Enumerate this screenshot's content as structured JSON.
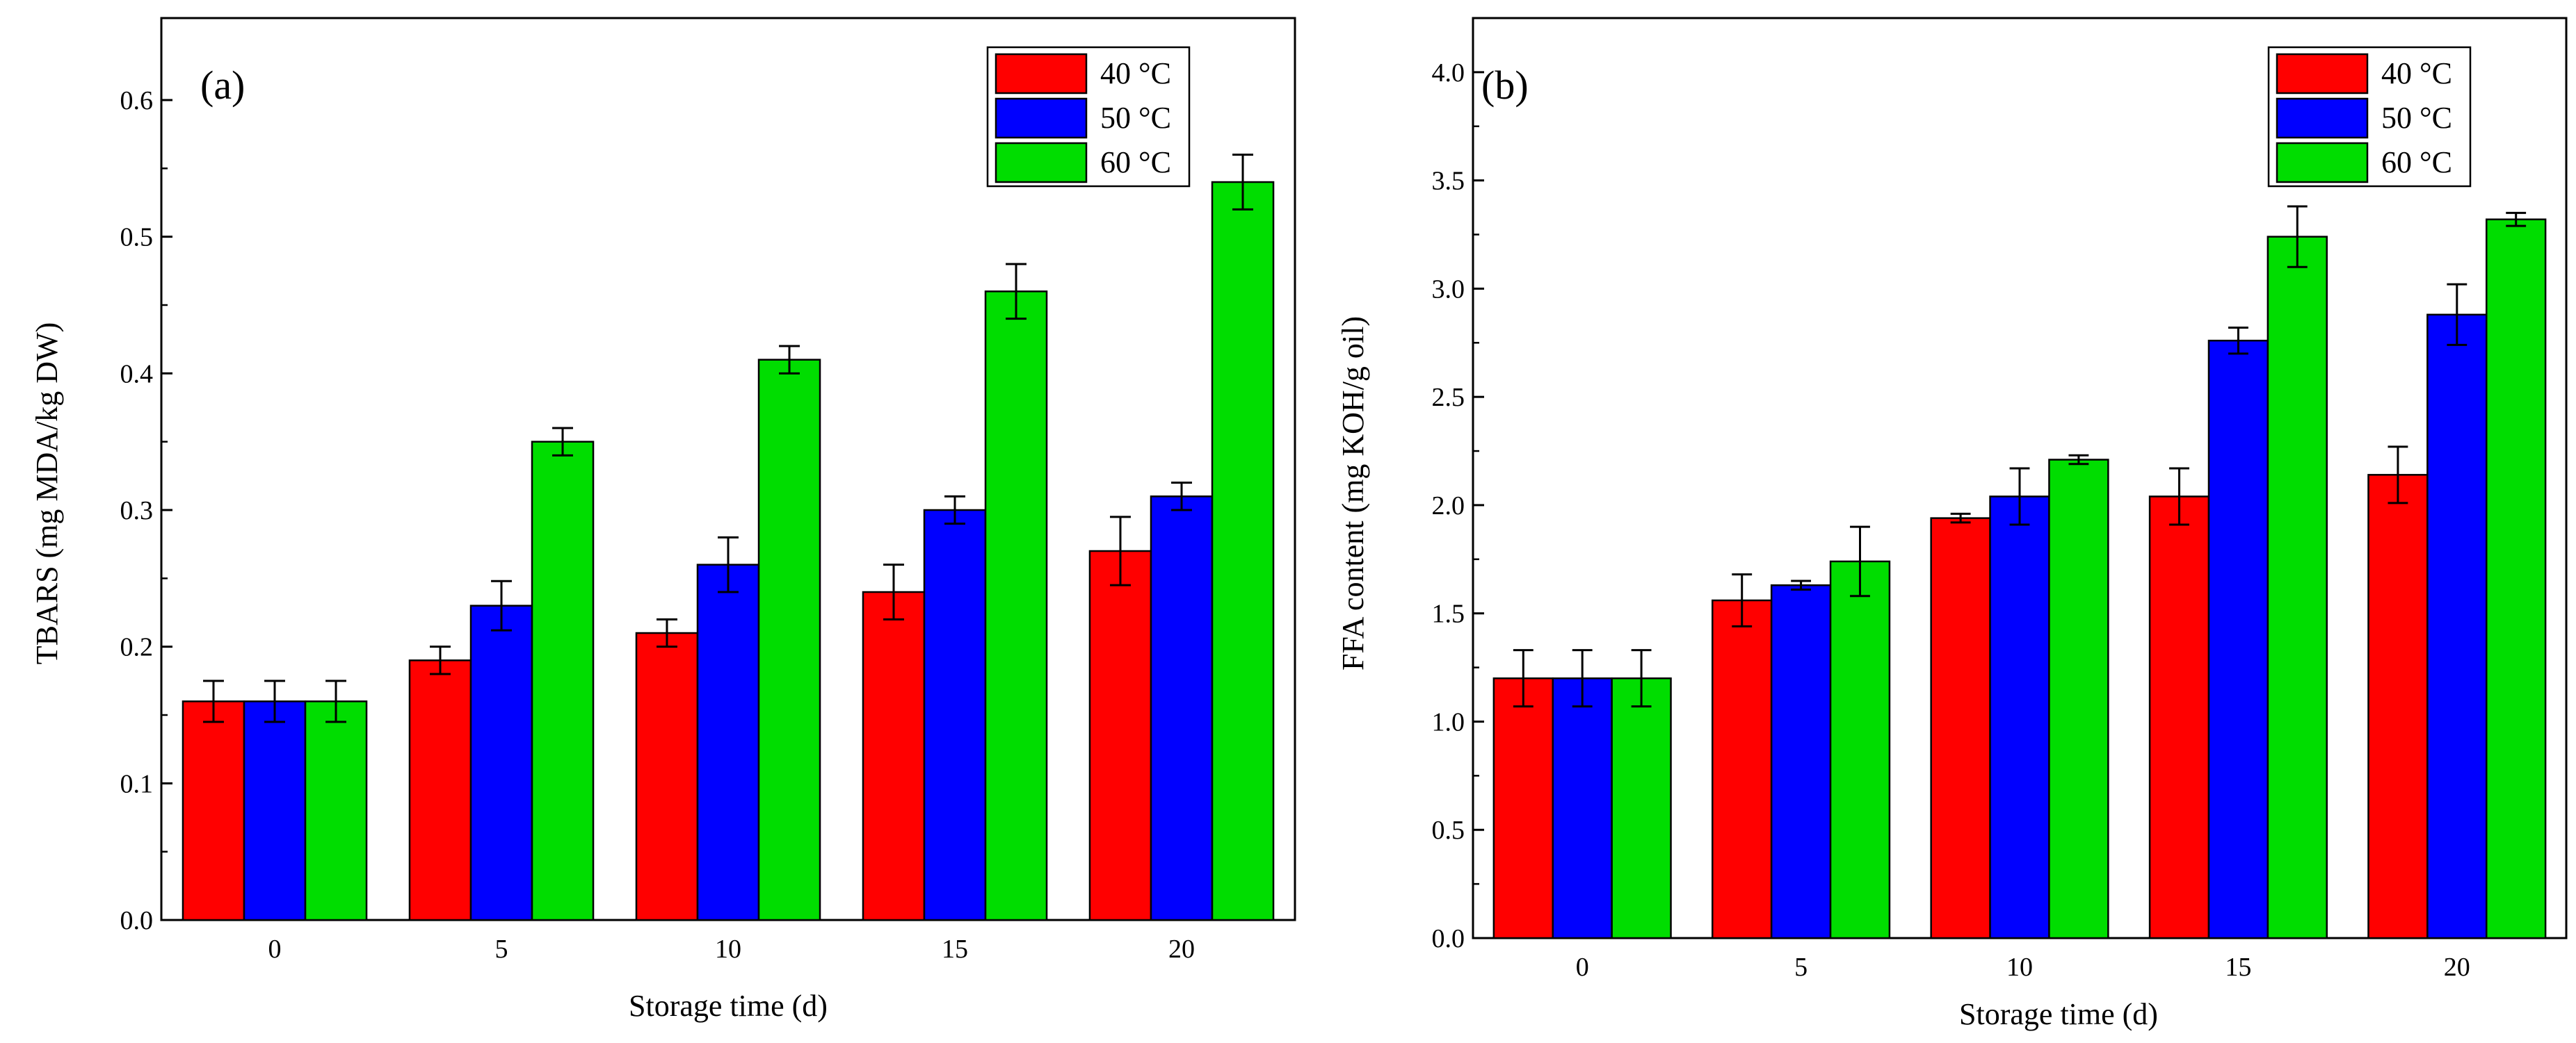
{
  "chart_data": [
    {
      "type": "bar",
      "panel_label": "(a)",
      "xlabel": "Storage time (d)",
      "ylabel": "TBARS (mg MDA/kg DW)",
      "categories": [
        "0",
        "5",
        "10",
        "15",
        "20"
      ],
      "ylim": [
        0,
        0.66
      ],
      "yticks": [
        0.0,
        0.1,
        0.2,
        0.3,
        0.4,
        0.5,
        0.6
      ],
      "ytick_labels": [
        "0.0",
        "0.1",
        "0.2",
        "0.3",
        "0.4",
        "0.5",
        "0.6"
      ],
      "legend_position": "top-right",
      "series": [
        {
          "name": "40 °C",
          "color": "#ff0000",
          "values": [
            0.16,
            0.19,
            0.21,
            0.24,
            0.27
          ],
          "errors": [
            0.015,
            0.01,
            0.01,
            0.02,
            0.025
          ]
        },
        {
          "name": "50 °C",
          "color": "#0000ff",
          "values": [
            0.16,
            0.23,
            0.26,
            0.3,
            0.31
          ],
          "errors": [
            0.015,
            0.018,
            0.02,
            0.01,
            0.01
          ]
        },
        {
          "name": "60 °C",
          "color": "#00dd00",
          "values": [
            0.16,
            0.35,
            0.41,
            0.46,
            0.54
          ],
          "errors": [
            0.015,
            0.01,
            0.01,
            0.02,
            0.02
          ]
        }
      ]
    },
    {
      "type": "bar",
      "panel_label": "(b)",
      "xlabel": "Storage time (d)",
      "ylabel": "FFA content (mg KOH/g oil)",
      "categories": [
        "0",
        "5",
        "10",
        "15",
        "20"
      ],
      "ylim": [
        0,
        4.25
      ],
      "yticks": [
        0.0,
        0.5,
        1.0,
        1.5,
        2.0,
        2.5,
        3.0,
        3.5,
        4.0
      ],
      "ytick_labels": [
        "0.0",
        "0.5",
        "1.0",
        "1.5",
        "2.0",
        "2.5",
        "3.0",
        "3.5",
        "4.0"
      ],
      "legend_position": "top-right",
      "series": [
        {
          "name": "40 °C",
          "color": "#ff0000",
          "values": [
            1.2,
            1.56,
            1.94,
            2.04,
            2.14
          ],
          "errors": [
            0.13,
            0.12,
            0.02,
            0.13,
            0.13
          ]
        },
        {
          "name": "50 °C",
          "color": "#0000ff",
          "values": [
            1.2,
            1.63,
            2.04,
            2.76,
            2.88
          ],
          "errors": [
            0.13,
            0.02,
            0.13,
            0.06,
            0.14
          ]
        },
        {
          "name": "60 °C",
          "color": "#00dd00",
          "values": [
            1.2,
            1.74,
            2.21,
            3.24,
            3.32
          ],
          "errors": [
            0.13,
            0.16,
            0.02,
            0.14,
            0.03
          ]
        }
      ]
    }
  ]
}
